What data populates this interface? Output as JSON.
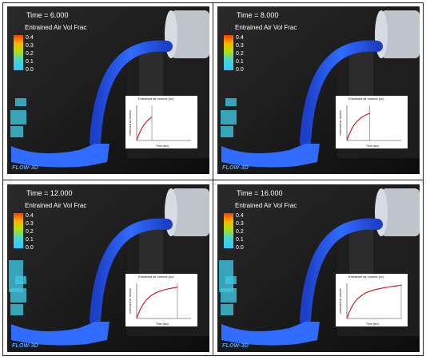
{
  "figure": {
    "panels": [
      {
        "time_label": "Time = 6.000",
        "field_label": "Entrained Air Vol Frac",
        "legend_ticks": [
          "0.4",
          "0.3",
          "0.2",
          "0.1",
          "0.0"
        ],
        "logo_text": "FLOW-3D",
        "inset": {
          "title": "Entrained air volume (cc)",
          "ylabel": "entrained air volume",
          "xlabel": "Time (sec)",
          "progress_fraction": 0.28
        }
      },
      {
        "time_label": "Time = 8.000",
        "field_label": "Entrained Air Vol Frac",
        "legend_ticks": [
          "0.4",
          "0.3",
          "0.2",
          "0.1",
          "0.0"
        ],
        "logo_text": "FLOW-3D",
        "inset": {
          "title": "Entrained air volume (cc)",
          "ylabel": "entrained air volume",
          "xlabel": "Time (sec)",
          "progress_fraction": 0.42
        }
      },
      {
        "time_label": "Time = 12.000",
        "field_label": "Entrained Air Vol Frac",
        "legend_ticks": [
          "0.4",
          "0.3",
          "0.2",
          "0.1",
          "0.0"
        ],
        "logo_text": "FLOW-3D",
        "inset": {
          "title": "Entrained air volume (cc)",
          "ylabel": "entrained air volume",
          "xlabel": "Time (sec)",
          "progress_fraction": 0.75
        }
      },
      {
        "time_label": "Time = 16.000",
        "field_label": "Entrained Air Vol Frac",
        "legend_ticks": [
          "0.4",
          "0.3",
          "0.2",
          "0.1",
          "0.0"
        ],
        "logo_text": "FLOW-3D",
        "inset": {
          "title": "Entrained air volume (cc)",
          "ylabel": "entrained air volume",
          "xlabel": "Time (sec)",
          "progress_fraction": 1.0
        }
      }
    ]
  },
  "colors": {
    "fluid": "#2f6cff",
    "fluid_dark": "#1c3fc7",
    "background": "#141414",
    "curve": "#cc1f1f",
    "legend_high": "#ff3c00",
    "legend_low": "#33c6ff"
  }
}
